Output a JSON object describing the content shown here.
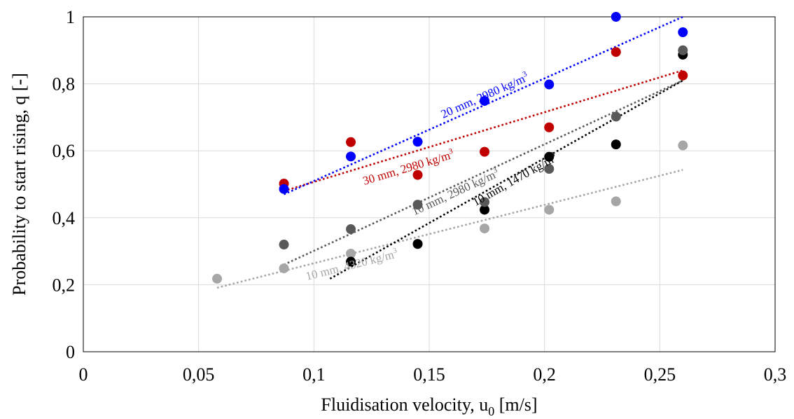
{
  "chart_data": {
    "type": "scatter",
    "title": "",
    "xlabel": "Fluidisation velocity, u",
    "xlabel_sub": "0",
    "xlabel_unit": " [m/s]",
    "ylabel": "Probability to start rising, q [-]",
    "xlim": [
      0,
      0.3
    ],
    "ylim": [
      0,
      1
    ],
    "xticks": [
      {
        "value": 0,
        "label": "0"
      },
      {
        "value": 0.05,
        "label": "0,05"
      },
      {
        "value": 0.1,
        "label": "0,1"
      },
      {
        "value": 0.15,
        "label": "0,15"
      },
      {
        "value": 0.2,
        "label": "0,2"
      },
      {
        "value": 0.25,
        "label": "0,25"
      },
      {
        "value": 0.3,
        "label": "0,3"
      }
    ],
    "yticks": [
      {
        "value": 0,
        "label": "0"
      },
      {
        "value": 0.2,
        "label": "0,2"
      },
      {
        "value": 0.4,
        "label": "0,4"
      },
      {
        "value": 0.6,
        "label": "0,6"
      },
      {
        "value": 0.8,
        "label": "0,8"
      },
      {
        "value": 1,
        "label": "1"
      }
    ],
    "grid": true,
    "legend": "none",
    "series": [
      {
        "label": "10 mm, 4320 kg/m",
        "color": "#a6a6a6",
        "x": [
          0.058,
          0.087,
          0.116,
          0.145,
          0.174,
          0.202,
          0.231,
          0.26
        ],
        "y": [
          0.218,
          0.249,
          0.293,
          0.321,
          0.368,
          0.424,
          0.449,
          0.616
        ],
        "trend": {
          "x": [
            0.058,
            0.26
          ],
          "y": [
            0.191,
            0.543
          ]
        }
      },
      {
        "label": "10 mm, 1470 kg/m",
        "color": "#000000",
        "x": [
          0.116,
          0.145,
          0.174,
          0.202,
          0.231,
          0.26
        ],
        "y": [
          0.269,
          0.322,
          0.424,
          0.582,
          0.619,
          0.887
        ],
        "trend": {
          "x": [
            0.107,
            0.26
          ],
          "y": [
            0.218,
            0.81
          ]
        }
      },
      {
        "label": "10 mm, 2980 kg/m",
        "color": "#595959",
        "x": [
          0.087,
          0.116,
          0.145,
          0.174,
          0.202,
          0.231,
          0.26
        ],
        "y": [
          0.32,
          0.366,
          0.439,
          0.447,
          0.546,
          0.702,
          0.9
        ],
        "trend": {
          "x": [
            0.087,
            0.26
          ],
          "y": [
            0.26,
            0.81
          ]
        }
      },
      {
        "label": "30 mm, 2980 kg/m",
        "color": "#c00000",
        "x": [
          0.087,
          0.116,
          0.145,
          0.174,
          0.202,
          0.231,
          0.26
        ],
        "y": [
          0.502,
          0.626,
          0.528,
          0.597,
          0.67,
          0.895,
          0.825
        ],
        "trend": {
          "x": [
            0.087,
            0.26
          ],
          "y": [
            0.48,
            0.84
          ]
        }
      },
      {
        "label": "20 mm, 2980 kg/m",
        "color": "#0000ff",
        "x": [
          0.087,
          0.116,
          0.145,
          0.174,
          0.202,
          0.231,
          0.26
        ],
        "y": [
          0.486,
          0.583,
          0.627,
          0.749,
          0.798,
          1.0,
          0.954
        ],
        "trend": {
          "x": [
            0.087,
            0.26
          ],
          "y": [
            0.47,
            1.0
          ]
        }
      }
    ]
  }
}
